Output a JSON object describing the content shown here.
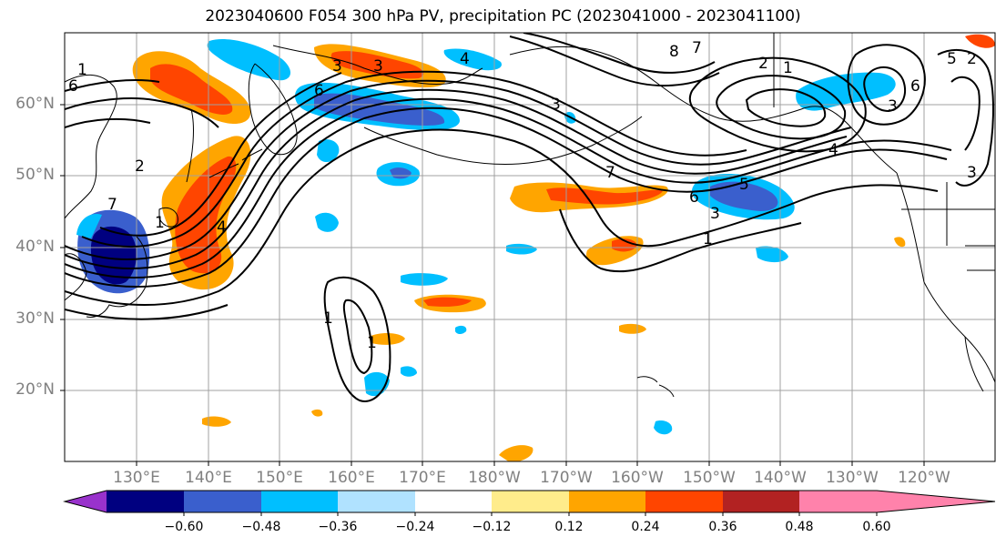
{
  "title": "2023040600 F054 300 hPa PV, precipitation PC (2023041000 - 2023041100)",
  "latitude_labels": [
    "60°N",
    "50°N",
    "40°N",
    "30°N",
    "20°N"
  ],
  "longitude_labels": [
    "130°E",
    "140°E",
    "150°E",
    "160°E",
    "170°E",
    "180°W",
    "170°W",
    "160°W",
    "150°W",
    "140°W",
    "130°W",
    "120°W"
  ],
  "colorbar": {
    "tick_labels": [
      "−0.60",
      "−0.48",
      "−0.36",
      "−0.24",
      "−0.12",
      "0.12",
      "0.24",
      "0.36",
      "0.48",
      "0.60"
    ],
    "colors": [
      "#9932cc",
      "#000080",
      "#3a5fcd",
      "#00bfff",
      "#b0e2ff",
      "#ffffff",
      "#ffec8b",
      "#ffa500",
      "#ff4500",
      "#b22222",
      "#ff82ab"
    ]
  },
  "contour_labels": [
    "1",
    "2",
    "3",
    "4",
    "5",
    "6",
    "7",
    "8"
  ]
}
